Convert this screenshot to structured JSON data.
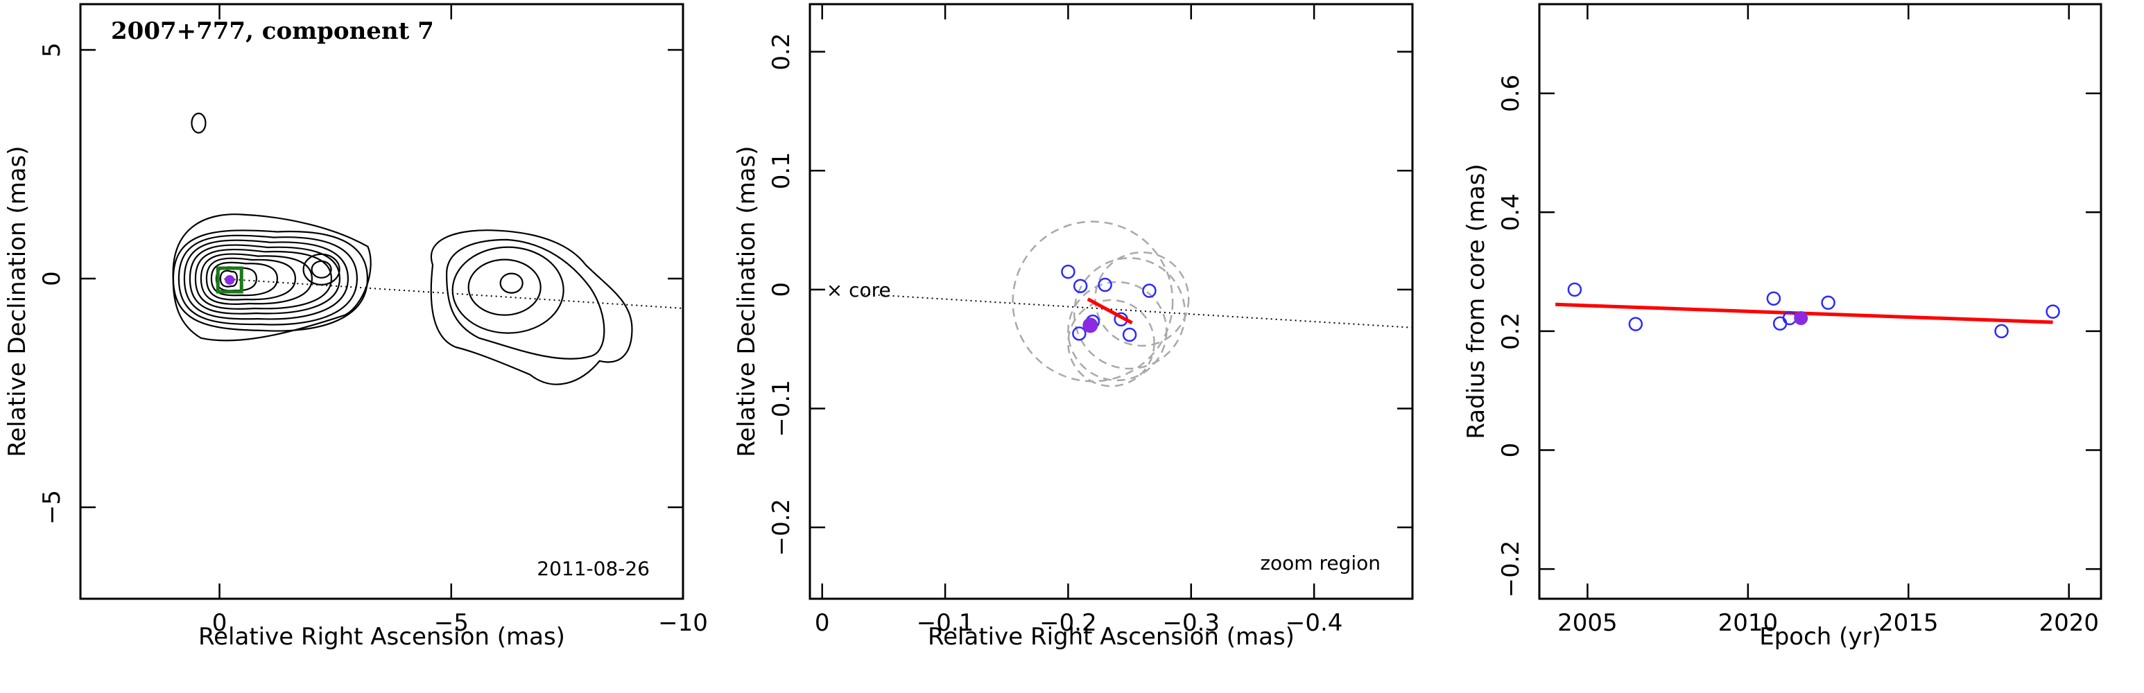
{
  "chart_data": [
    {
      "type": "contour",
      "title": "2007+777, component 7",
      "date_label": "2011-08-26",
      "xlabel": "Relative Right Ascension (mas)",
      "ylabel": "Relative Declination (mas)",
      "xlim": [
        3,
        -10
      ],
      "ylim": [
        -7,
        6
      ],
      "xticks": [
        0,
        -5,
        -10
      ],
      "yticks": [
        -5,
        0,
        5
      ],
      "component": {
        "x": -0.22,
        "y": -0.03
      },
      "jet_axis": {
        "x1": 0,
        "y1": 0,
        "x2": -10,
        "y2": -0.65
      },
      "colors": {
        "component_box": "#1a7a1a",
        "component_marker": "#8a2be2",
        "contours": "#000000"
      }
    },
    {
      "type": "scatter",
      "xlabel": "Relative Right Ascension (mas)",
      "ylabel": "Relative Declination (mas)",
      "xlim": [
        0.01,
        -0.48
      ],
      "ylim": [
        -0.26,
        0.24
      ],
      "xticks": [
        0,
        -0.1,
        -0.2,
        -0.3,
        -0.4
      ],
      "yticks": [
        -0.2,
        -0.1,
        0,
        0.1,
        0.2
      ],
      "core_label": "× core",
      "region_label": "zoom region",
      "points": [
        {
          "x": -0.2,
          "y": 0.015
        },
        {
          "x": -0.21,
          "y": 0.003
        },
        {
          "x": -0.23,
          "y": 0.004
        },
        {
          "x": -0.266,
          "y": -0.001
        },
        {
          "x": -0.22,
          "y": -0.027
        },
        {
          "x": -0.243,
          "y": -0.025
        },
        {
          "x": -0.209,
          "y": -0.037
        },
        {
          "x": -0.25,
          "y": -0.038
        }
      ],
      "highlight": {
        "x": -0.218,
        "y": -0.03
      },
      "error_circles": [
        {
          "x": -0.22,
          "y": -0.01,
          "r": 0.065
        },
        {
          "x": -0.25,
          "y": -0.02,
          "r": 0.045
        },
        {
          "x": -0.26,
          "y": -0.008,
          "r": 0.038
        },
        {
          "x": -0.24,
          "y": -0.035,
          "r": 0.04
        },
        {
          "x": -0.235,
          "y": -0.045,
          "r": 0.035
        }
      ],
      "fit_line": {
        "x1": -0.216,
        "y1": -0.008,
        "x2": -0.252,
        "y2": -0.028
      },
      "jet_axis": {
        "x1": 0,
        "y1": 0,
        "x2": -0.48,
        "y2": -0.032
      },
      "colors": {
        "points": "#2a2aff",
        "highlight": "#8a2be2",
        "fit": "#ff0000",
        "circles": "#a9a9a9"
      }
    },
    {
      "type": "scatter",
      "xlabel": "Epoch (yr)",
      "ylabel": "Radius from core (mas)",
      "xlim": [
        2003.5,
        2021
      ],
      "ylim": [
        -0.25,
        0.75
      ],
      "xticks": [
        2005,
        2010,
        2015,
        2020
      ],
      "yticks": [
        -0.2,
        0,
        0.2,
        0.4,
        0.6
      ],
      "points": [
        {
          "x": 2004.6,
          "y": 0.27
        },
        {
          "x": 2006.5,
          "y": 0.212
        },
        {
          "x": 2010.8,
          "y": 0.255
        },
        {
          "x": 2011.0,
          "y": 0.213
        },
        {
          "x": 2011.3,
          "y": 0.222
        },
        {
          "x": 2012.5,
          "y": 0.248
        },
        {
          "x": 2017.9,
          "y": 0.2
        },
        {
          "x": 2019.5,
          "y": 0.233
        }
      ],
      "highlight": {
        "x": 2011.65,
        "y": 0.222
      },
      "fit_line": {
        "x1": 2004,
        "y1": 0.245,
        "x2": 2019.5,
        "y2": 0.215
      },
      "colors": {
        "points": "#2a2aff",
        "highlight": "#8a2be2",
        "fit": "#ff0000"
      }
    }
  ]
}
